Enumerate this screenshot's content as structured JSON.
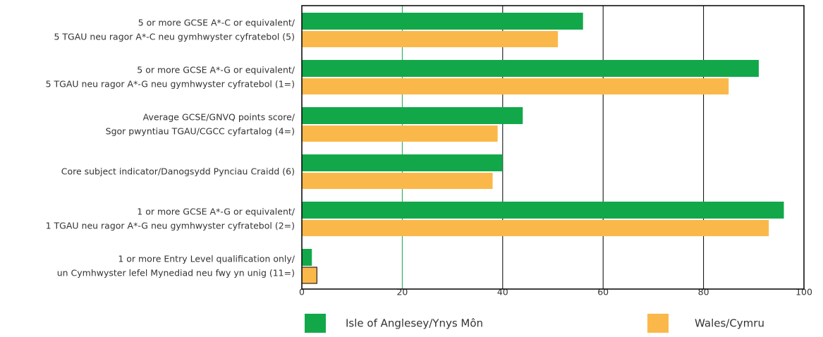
{
  "chart_data": {
    "type": "bar",
    "orientation": "horizontal",
    "categories": [
      [
        "5 or more GCSE A*-C or equivalent/",
        "5 TGAU neu ragor A*-C neu gymhwyster cyfratebol (5)"
      ],
      [
        "5 or more GCSE A*-G or equivalent/",
        "5 TGAU neu ragor A*-G neu gymhwyster cyfratebol (1=)"
      ],
      [
        "Average GCSE/GNVQ points score/",
        "Sgor pwyntiau TGAU/CGCC cyfartalog (4=)"
      ],
      [
        "Core subject indicator/Danogsydd Pynciau Craidd (6)"
      ],
      [
        "1 or more GCSE A*-G or equivalent/",
        "1 TGAU neu ragor A*-G neu gymhwyster cyfratebol (2=)"
      ],
      [
        "1 or more Entry Level qualification only/",
        "un Cymhwyster lefel Mynediad neu fwy yn unig (11=)"
      ]
    ],
    "series": [
      {
        "name": "Isle of Anglesey/Ynys Môn",
        "color": "#12a84a",
        "values": [
          56,
          91,
          44,
          40,
          96,
          2
        ]
      },
      {
        "name": "Wales/Cymru",
        "color": "#fbb84a",
        "values": [
          51,
          85,
          39,
          38,
          93,
          3
        ]
      }
    ],
    "xlim": [
      0,
      100
    ],
    "xticks": [
      0,
      20,
      40,
      60,
      80,
      100
    ],
    "grid": true,
    "grid_colors": [
      "#000000",
      "#12a84a",
      "#000000",
      "#000000",
      "#000000",
      "#000000"
    ],
    "legend": "bottom"
  }
}
